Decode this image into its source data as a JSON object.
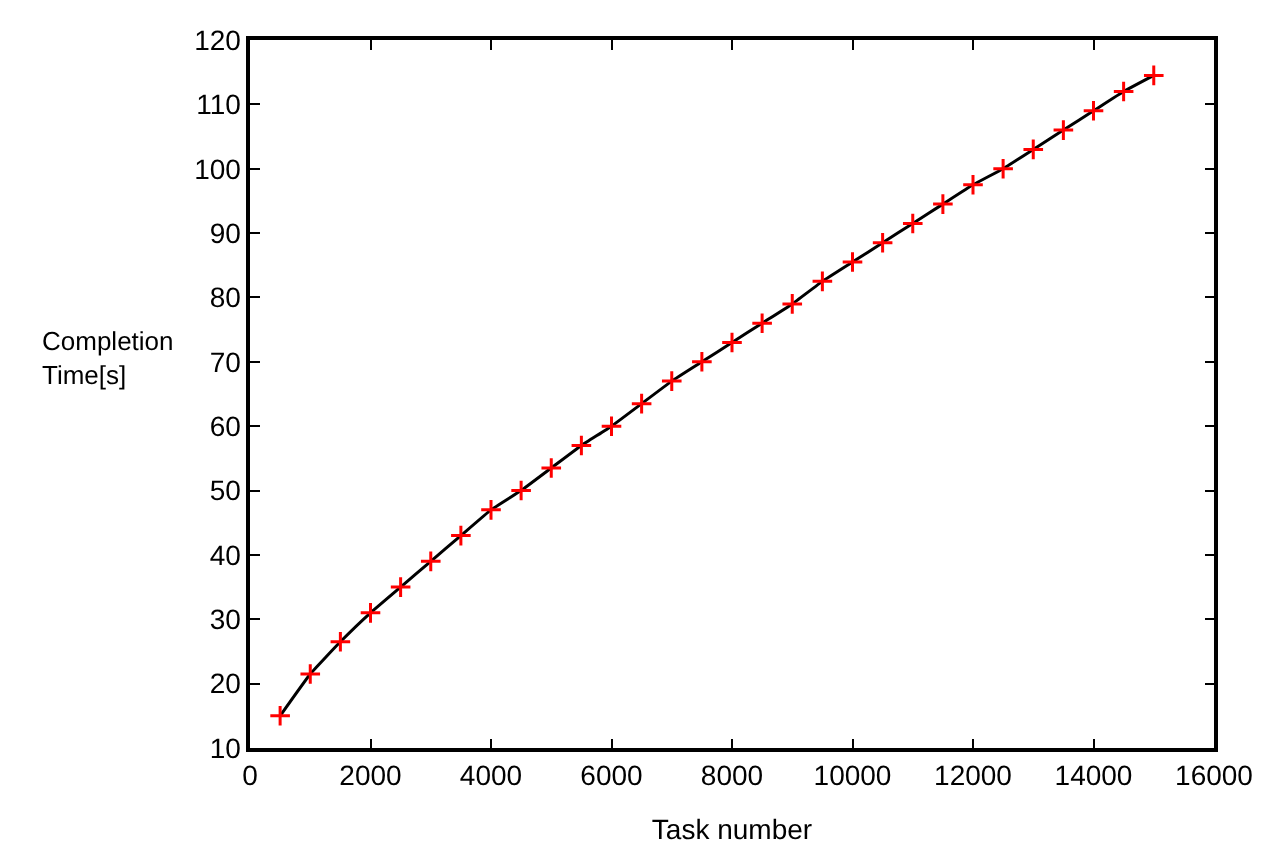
{
  "chart_data": {
    "type": "line",
    "xlabel": "Task number",
    "ylabel": "Completion Time[s]",
    "x": [
      500,
      1000,
      1500,
      2000,
      2500,
      3000,
      3500,
      4000,
      4500,
      5000,
      5500,
      6000,
      6500,
      7000,
      7500,
      8000,
      8500,
      9000,
      9500,
      10000,
      10500,
      11000,
      11500,
      12000,
      12500,
      13000,
      13500,
      14000,
      14500,
      15000
    ],
    "series": [
      {
        "color": "#000000",
        "marker": "none",
        "values": [
          15,
          21.5,
          26.5,
          31,
          35,
          39,
          43,
          47,
          50,
          53.5,
          57,
          60,
          63.5,
          67,
          70,
          73,
          76,
          79,
          82.5,
          85.5,
          88.5,
          91.5,
          94.5,
          97.5,
          100,
          103,
          106,
          109,
          112,
          114.5
        ]
      },
      {
        "type": "scatter",
        "color": "#ff0000",
        "marker": "cross",
        "values": [
          15,
          21.5,
          26.5,
          31,
          35,
          39,
          43,
          47,
          50,
          53.5,
          57,
          60,
          63.5,
          67,
          70,
          73,
          76,
          79,
          82.5,
          85.5,
          88.5,
          91.5,
          94.5,
          97.5,
          100,
          103,
          106,
          109,
          112,
          114.5
        ]
      }
    ],
    "xlim": [
      0,
      16000
    ],
    "xticks": [
      0,
      2000,
      4000,
      6000,
      8000,
      10000,
      12000,
      14000,
      16000
    ],
    "ylim": [
      10,
      120
    ],
    "yticks": [
      10,
      20,
      30,
      40,
      50,
      60,
      70,
      80,
      90,
      100,
      110,
      120
    ]
  }
}
